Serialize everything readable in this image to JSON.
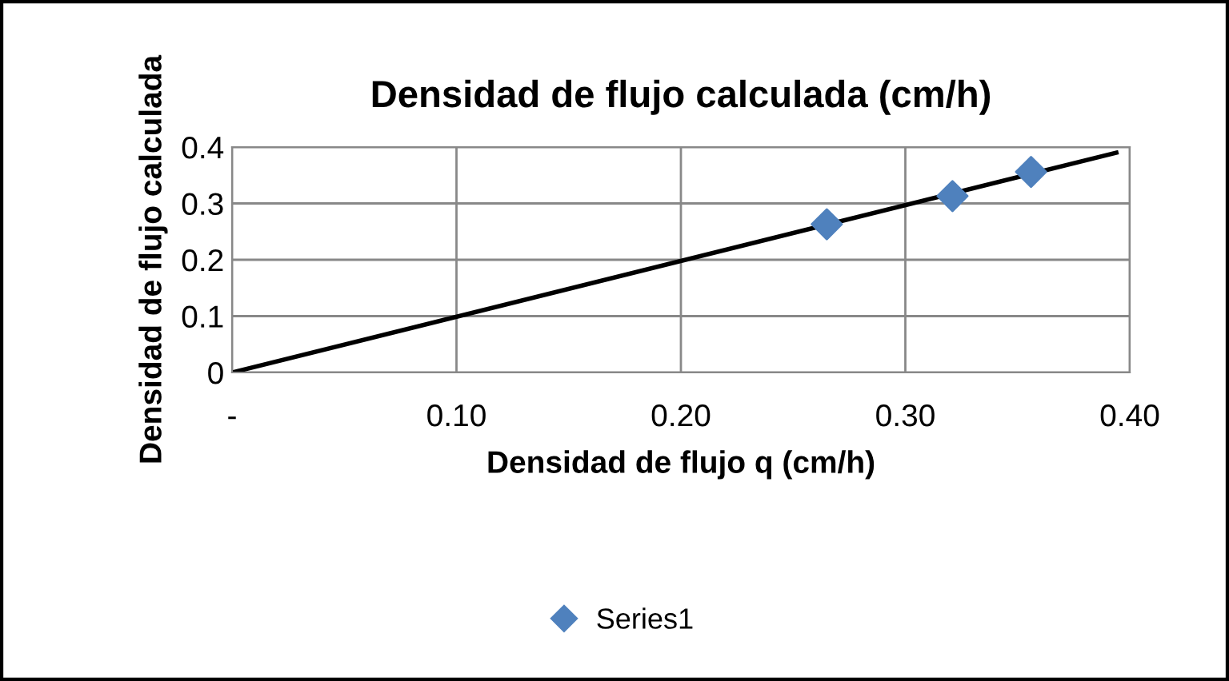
{
  "chart_data": {
    "type": "scatter",
    "title": "Densidad de flujo calculada (cm/h)",
    "xlabel": "Densidad de flujo q (cm/h)",
    "ylabel": "Densidad de flujo calculada",
    "series": [
      {
        "name": "Series1",
        "color": "#4f81bd",
        "marker": "diamond",
        "x": [
          0.265,
          0.321,
          0.356
        ],
        "values": [
          0.263,
          0.313,
          0.356
        ]
      },
      {
        "type": "line",
        "color": "#000000",
        "marker": "none",
        "x": [
          0,
          0.394
        ],
        "values": [
          0,
          0.39
        ]
      }
    ],
    "xlim": [
      0,
      0.4
    ],
    "ylim": [
      0,
      0.4
    ],
    "xticks": [
      {
        "value": 0,
        "label": "-"
      },
      {
        "value": 0.1,
        "label": "0.10"
      },
      {
        "value": 0.2,
        "label": "0.20"
      },
      {
        "value": 0.3,
        "label": "0.30"
      },
      {
        "value": 0.4,
        "label": "0.40"
      }
    ],
    "yticks": [
      0,
      0.1,
      0.2,
      0.3,
      0.4
    ],
    "grid": true,
    "legend": "bottom"
  }
}
